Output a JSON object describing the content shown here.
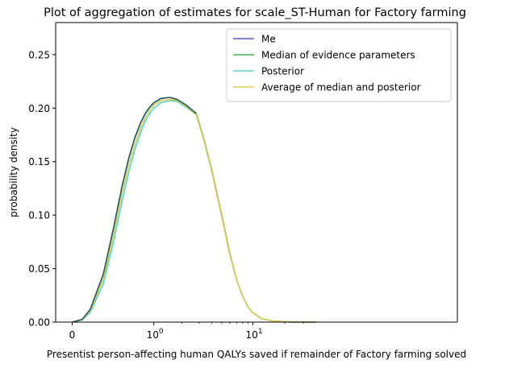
{
  "chart_data": {
    "type": "line",
    "title": "Plot of aggregation of estimates for scale_ST-Human for Factory farming",
    "xlabel": "Presentist person-affecting human QALYs saved if remainder of Factory farming solved",
    "ylabel": "probability density",
    "x_scale": "symlog",
    "x_ticks": [
      {
        "value": 0,
        "label": "0"
      },
      {
        "value": 1,
        "label": "10",
        "exp": "0"
      },
      {
        "value": 10,
        "label": "10",
        "exp": "1"
      }
    ],
    "ylim": [
      0,
      0.28
    ],
    "y_ticks": [
      {
        "value": 0.0,
        "label": "0.00"
      },
      {
        "value": 0.05,
        "label": "0.05"
      },
      {
        "value": 0.1,
        "label": "0.10"
      },
      {
        "value": 0.15,
        "label": "0.15"
      },
      {
        "value": 0.2,
        "label": "0.20"
      },
      {
        "value": 0.25,
        "label": "0.25"
      }
    ],
    "grid": false,
    "legend_position": "top-right",
    "series": [
      {
        "name": "Me",
        "color": "#5555dd",
        "points": [
          [
            0,
            0
          ],
          [
            0.05,
            0.0025
          ],
          [
            0.1,
            0.012
          ],
          [
            0.2,
            0.045
          ],
          [
            0.3,
            0.088
          ],
          [
            0.4,
            0.126
          ],
          [
            0.5,
            0.154
          ],
          [
            0.6,
            0.173
          ],
          [
            0.7,
            0.186
          ],
          [
            0.8,
            0.195
          ],
          [
            0.9,
            0.201
          ],
          [
            1.0,
            0.205
          ],
          [
            1.2,
            0.209
          ],
          [
            1.5,
            0.21
          ],
          [
            1.8,
            0.208
          ],
          [
            2.2,
            0.203
          ],
          [
            2.8,
            0.195
          ],
          [
            3.3,
            0.173
          ],
          [
            4.0,
            0.142
          ],
          [
            5.0,
            0.1
          ],
          [
            6.0,
            0.064
          ],
          [
            7.0,
            0.039
          ],
          [
            8.0,
            0.024
          ],
          [
            9.0,
            0.014
          ],
          [
            10.0,
            0.0085
          ],
          [
            12.0,
            0.0035
          ],
          [
            15.0,
            0.0012
          ],
          [
            20.0,
            0.0003
          ],
          [
            25.0,
            0.0001
          ],
          [
            40.0,
            0
          ]
        ]
      },
      {
        "name": "Median of evidence parameters",
        "color": "#4caf50",
        "points": [
          [
            0,
            0
          ],
          [
            0.05,
            0.0025
          ],
          [
            0.1,
            0.012
          ],
          [
            0.2,
            0.045
          ],
          [
            0.3,
            0.088
          ],
          [
            0.4,
            0.126
          ],
          [
            0.5,
            0.154
          ],
          [
            0.6,
            0.173
          ],
          [
            0.7,
            0.186
          ],
          [
            0.8,
            0.195
          ],
          [
            0.9,
            0.201
          ],
          [
            1.0,
            0.205
          ],
          [
            1.2,
            0.209
          ],
          [
            1.5,
            0.21
          ],
          [
            1.8,
            0.208
          ],
          [
            2.2,
            0.203
          ],
          [
            2.8,
            0.195
          ],
          [
            3.3,
            0.173
          ],
          [
            4.0,
            0.142
          ],
          [
            5.0,
            0.1
          ],
          [
            6.0,
            0.064
          ],
          [
            7.0,
            0.039
          ],
          [
            8.0,
            0.024
          ],
          [
            9.0,
            0.014
          ],
          [
            10.0,
            0.0085
          ],
          [
            12.0,
            0.0035
          ],
          [
            15.0,
            0.0012
          ],
          [
            20.0,
            0.0003
          ],
          [
            25.0,
            0.0001
          ],
          [
            40.0,
            0
          ]
        ]
      },
      {
        "name": "Posterior",
        "color": "#55d6dd",
        "points": [
          [
            0,
            0
          ],
          [
            0.05,
            0.002
          ],
          [
            0.1,
            0.009
          ],
          [
            0.2,
            0.036
          ],
          [
            0.3,
            0.075
          ],
          [
            0.4,
            0.112
          ],
          [
            0.5,
            0.141
          ],
          [
            0.6,
            0.162
          ],
          [
            0.7,
            0.177
          ],
          [
            0.8,
            0.188
          ],
          [
            0.9,
            0.195
          ],
          [
            1.0,
            0.2
          ],
          [
            1.2,
            0.205
          ],
          [
            1.5,
            0.207
          ],
          [
            1.8,
            0.206
          ],
          [
            2.2,
            0.201
          ],
          [
            2.8,
            0.194
          ],
          [
            3.3,
            0.172
          ],
          [
            4.0,
            0.141
          ],
          [
            5.0,
            0.099
          ],
          [
            6.0,
            0.063
          ],
          [
            7.0,
            0.039
          ],
          [
            8.0,
            0.024
          ],
          [
            9.0,
            0.014
          ],
          [
            10.0,
            0.0085
          ],
          [
            12.0,
            0.0035
          ],
          [
            15.0,
            0.0012
          ],
          [
            20.0,
            0.0003
          ],
          [
            25.0,
            0.0001
          ],
          [
            40.0,
            0
          ]
        ]
      },
      {
        "name": "Average of median and posterior",
        "color": "#e0cc55",
        "points": [
          [
            0,
            0
          ],
          [
            0.05,
            0.0022
          ],
          [
            0.1,
            0.0105
          ],
          [
            0.2,
            0.04
          ],
          [
            0.3,
            0.081
          ],
          [
            0.4,
            0.119
          ],
          [
            0.5,
            0.147
          ],
          [
            0.6,
            0.167
          ],
          [
            0.7,
            0.181
          ],
          [
            0.8,
            0.191
          ],
          [
            0.9,
            0.198
          ],
          [
            1.0,
            0.203
          ],
          [
            1.2,
            0.207
          ],
          [
            1.5,
            0.208
          ],
          [
            1.8,
            0.207
          ],
          [
            2.2,
            0.202
          ],
          [
            2.8,
            0.194
          ],
          [
            3.3,
            0.172
          ],
          [
            4.0,
            0.141
          ],
          [
            5.0,
            0.099
          ],
          [
            6.0,
            0.063
          ],
          [
            7.0,
            0.039
          ],
          [
            8.0,
            0.024
          ],
          [
            9.0,
            0.014
          ],
          [
            10.0,
            0.0085
          ],
          [
            12.0,
            0.0035
          ],
          [
            15.0,
            0.0012
          ],
          [
            20.0,
            0.0003
          ],
          [
            25.0,
            0.0001
          ],
          [
            40.0,
            0
          ]
        ]
      },
      {
        "name": "",
        "color": "#2e5f5f",
        "points": [
          [
            0,
            0
          ],
          [
            0.05,
            0.0025
          ],
          [
            0.1,
            0.012
          ],
          [
            0.2,
            0.045
          ],
          [
            0.3,
            0.088
          ],
          [
            0.4,
            0.126
          ],
          [
            0.5,
            0.154
          ],
          [
            0.6,
            0.173
          ],
          [
            0.7,
            0.186
          ],
          [
            0.8,
            0.195
          ],
          [
            0.9,
            0.201
          ],
          [
            1.0,
            0.205
          ],
          [
            1.2,
            0.209
          ],
          [
            1.5,
            0.21
          ],
          [
            1.8,
            0.208
          ],
          [
            2.2,
            0.203
          ],
          [
            2.8,
            0.195
          ]
        ]
      }
    ]
  }
}
